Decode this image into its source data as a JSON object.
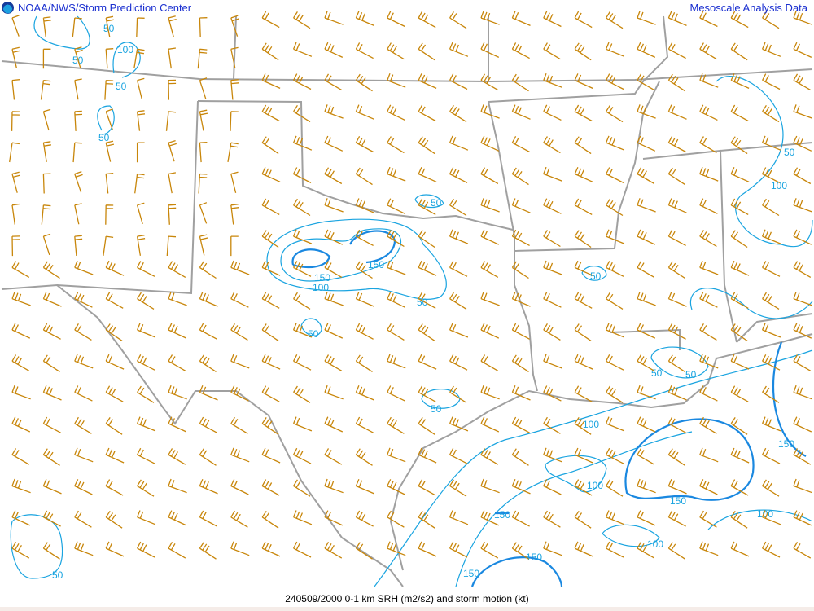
{
  "header": {
    "left_title": "NOAA/NWS/Storm Prediction Center",
    "right_title": "Mesoscale Analysis Data",
    "logo": "noaa-logo"
  },
  "footer": {
    "caption": "240509/2000 0-1 km SRH (m2/s2) and storm motion (kt)"
  },
  "colors": {
    "barb": "#c8860a",
    "contour": "#1aa4e0",
    "border": "#a0a0a0",
    "title": "#1a2fd0"
  },
  "contour_labels": [
    "50",
    "50",
    "100",
    "50",
    "50",
    "50",
    "150",
    "150",
    "100",
    "50",
    "50",
    "50",
    "50",
    "50",
    "100",
    "50",
    "50",
    "100",
    "150",
    "100",
    "150",
    "150",
    "100",
    "100",
    "150",
    "150",
    "50"
  ]
}
